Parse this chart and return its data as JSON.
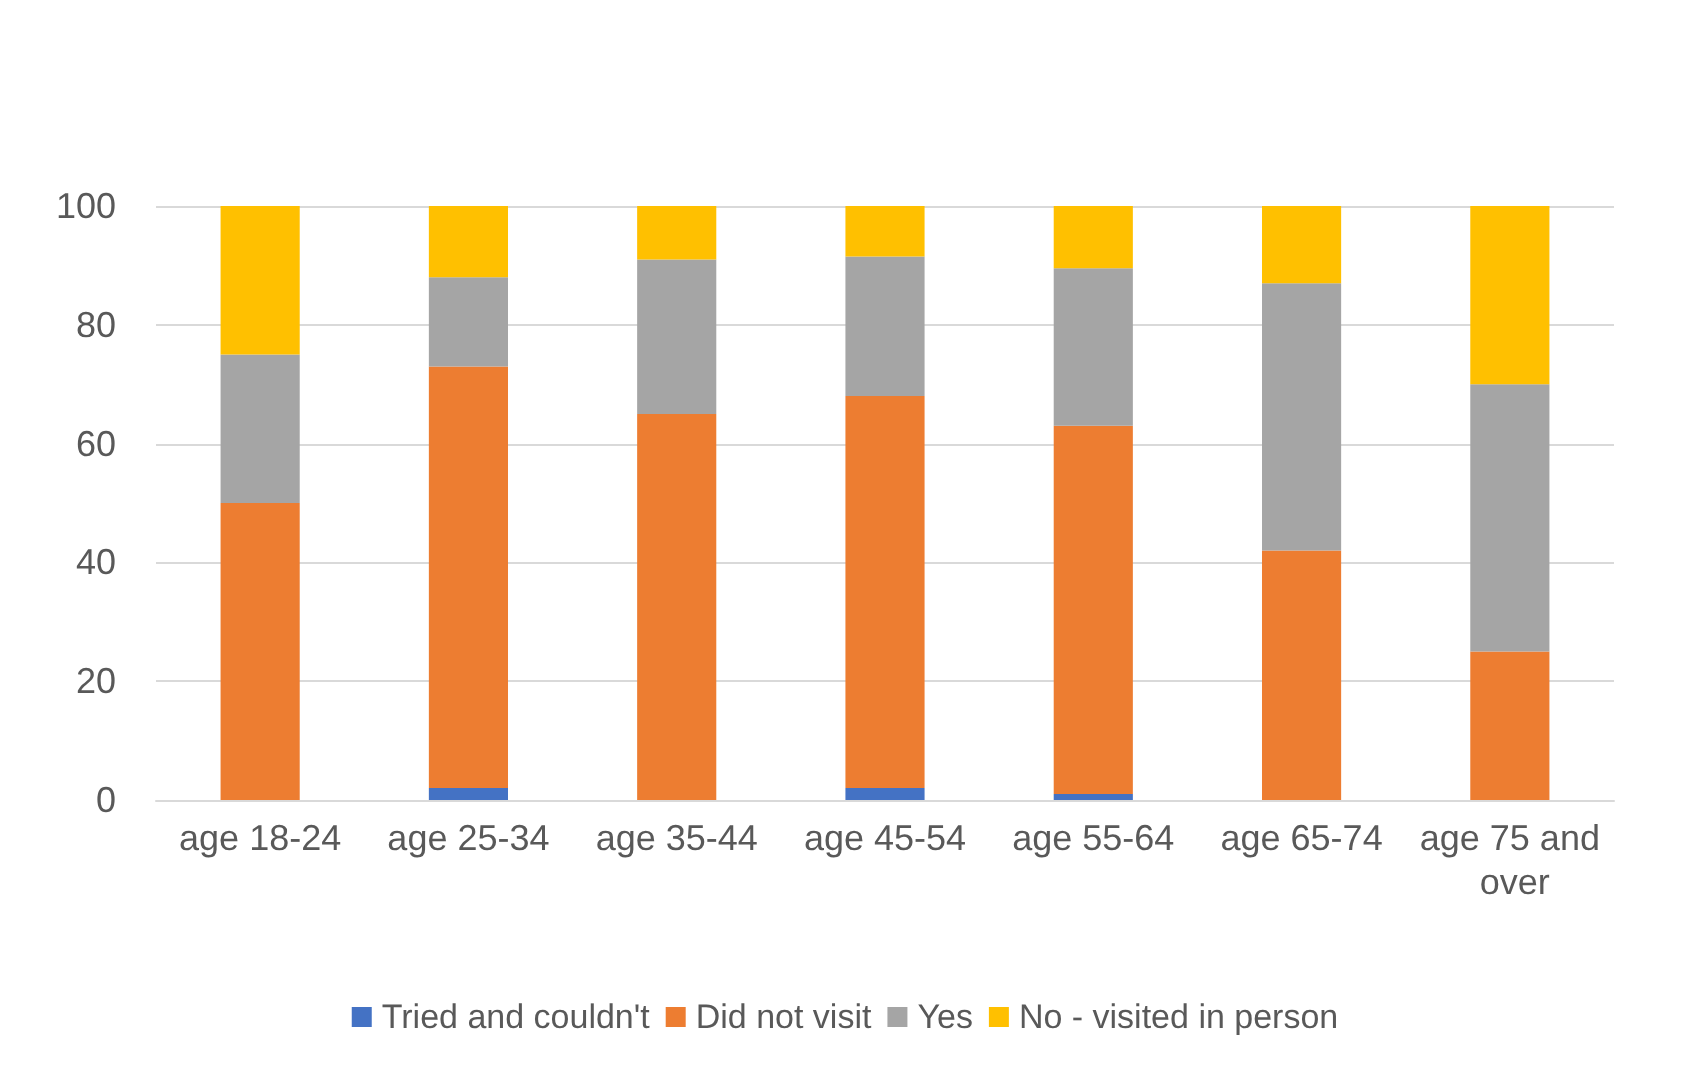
{
  "chart_data": {
    "type": "bar",
    "stacked": true,
    "categories": [
      "age 18-24",
      "age 25-34",
      "age 35-44",
      "age 45-54",
      "age 55-64",
      "age 65-74",
      "age 75 and over"
    ],
    "series": [
      {
        "name": "Tried and couldn't",
        "color": "#4472c4",
        "values": [
          0,
          2,
          0,
          2,
          1,
          0,
          0
        ]
      },
      {
        "name": "Did not visit",
        "color": "#ed7d31",
        "values": [
          50,
          71,
          65,
          66,
          62,
          42,
          25
        ]
      },
      {
        "name": "Yes",
        "color": "#a5a5a5",
        "values": [
          25,
          15,
          26,
          23.5,
          26.5,
          45,
          45
        ]
      },
      {
        "name": "No - visited in person",
        "color": "#ffc000",
        "values": [
          25,
          12,
          9,
          8.5,
          10.5,
          13,
          30
        ]
      }
    ],
    "ylim": [
      0,
      100
    ],
    "yticks": [
      0,
      20,
      40,
      60,
      80,
      100
    ],
    "grid": "y",
    "legend": "bottom"
  }
}
